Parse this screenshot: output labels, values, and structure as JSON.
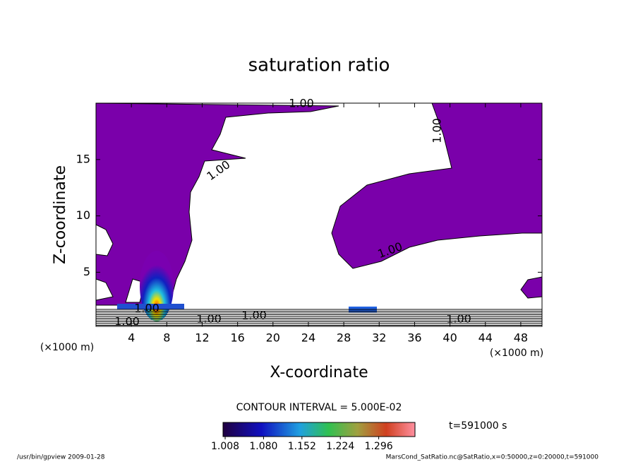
{
  "chart_data": {
    "type": "contour",
    "title": "saturation ratio",
    "x_label": "X-coordinate",
    "y_label": "Z-coordinate",
    "x_unit": "(×1000 m)",
    "xlim": [
      0,
      50.4
    ],
    "ylim": [
      0.2,
      20
    ],
    "xticks": [
      4,
      8,
      12,
      16,
      20,
      24,
      28,
      32,
      36,
      40,
      44,
      48
    ],
    "yticks": [
      5,
      10,
      15
    ],
    "contour_interval": "CONTOUR INTERVAL = 5.000E-02",
    "contour_labels": [
      "1.00",
      "1.00",
      "1.00",
      "1.00",
      "1.00",
      "1.00",
      "1.00",
      "1.00",
      "1.00"
    ],
    "colorbar": {
      "clim": [
        1.004,
        1.364
      ],
      "ticks": [
        1.008,
        {
          "value": 1.08,
          "label": "1.080"
        },
        1.152,
        1.224,
        1.296
      ]
    },
    "time": "t=591000 s",
    "footer_left": "/usr/bin/gpview  2009-01-28",
    "footer_right": "MarsCond_SatRatio.nc@SatRatio,x=0:50000,z=0:20000,t=591000"
  }
}
